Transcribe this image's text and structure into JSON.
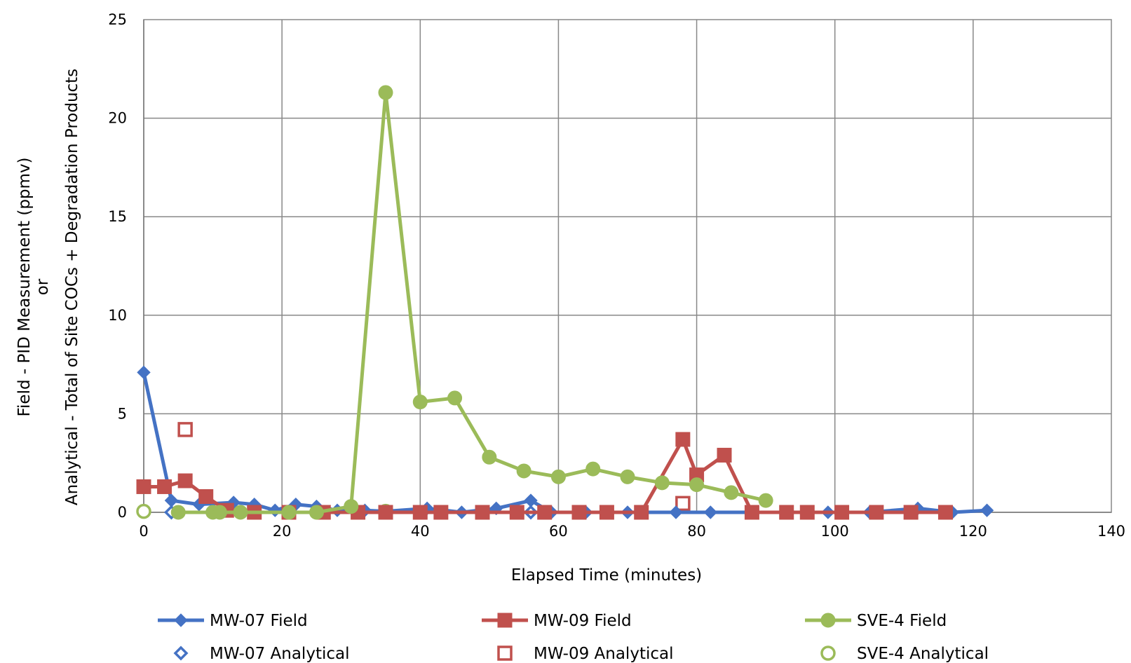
{
  "chart_data": {
    "type": "scatter",
    "xlabel": "Elapsed Time (minutes)",
    "ylabel_lines": [
      "Field - PID Measurement (ppmv)",
      "or",
      "Analytical - Total of Site COCs + Degradation Products"
    ],
    "xlim": [
      0,
      140
    ],
    "ylim": [
      0,
      25
    ],
    "x_ticks": [
      0,
      20,
      40,
      60,
      80,
      100,
      120,
      140
    ],
    "y_ticks": [
      0,
      5,
      10,
      15,
      20,
      25
    ],
    "grid": true,
    "legend_position": "bottom",
    "series": [
      {
        "name": "MW-07 Field",
        "color": "#4472C4",
        "marker": "diamond",
        "filled": true,
        "line": true,
        "points": [
          [
            0,
            7.1
          ],
          [
            4,
            0.6
          ],
          [
            8,
            0.4
          ],
          [
            13,
            0.5
          ],
          [
            16,
            0.4
          ],
          [
            19,
            0.1
          ],
          [
            22,
            0.4
          ],
          [
            25,
            0.3
          ],
          [
            28,
            0.1
          ],
          [
            32,
            0.1
          ],
          [
            35,
            0.05
          ],
          [
            41,
            0.2
          ],
          [
            46,
            0.0
          ],
          [
            51,
            0.2
          ],
          [
            56,
            0.6
          ],
          [
            59,
            0.0
          ],
          [
            64,
            0.0
          ],
          [
            70,
            0.0
          ],
          [
            77,
            0.0
          ],
          [
            82,
            0.0
          ],
          [
            88,
            0.0
          ],
          [
            93,
            0.0
          ],
          [
            99,
            0.0
          ],
          [
            105,
            0.0
          ],
          [
            112,
            0.2
          ],
          [
            117,
            0.0
          ],
          [
            122,
            0.1
          ]
        ]
      },
      {
        "name": "MW-09 Field",
        "color": "#C0504D",
        "marker": "square",
        "filled": true,
        "line": true,
        "points": [
          [
            0,
            1.3
          ],
          [
            3,
            1.3
          ],
          [
            6,
            1.6
          ],
          [
            9,
            0.8
          ],
          [
            12,
            0.1
          ],
          [
            16,
            0.0
          ],
          [
            21,
            0.0
          ],
          [
            26,
            0.0
          ],
          [
            31,
            0.0
          ],
          [
            35,
            0.0
          ],
          [
            40,
            0.0
          ],
          [
            43,
            0.0
          ],
          [
            49,
            0.0
          ],
          [
            54,
            0.0
          ],
          [
            58,
            0.0
          ],
          [
            63,
            0.0
          ],
          [
            67,
            0.0
          ],
          [
            72,
            0.0
          ],
          [
            78,
            3.7
          ],
          [
            80,
            1.9
          ],
          [
            84,
            2.9
          ],
          [
            88,
            0.0
          ],
          [
            93,
            0.0
          ],
          [
            96,
            0.0
          ],
          [
            101,
            0.0
          ],
          [
            106,
            0.0
          ],
          [
            111,
            0.0
          ],
          [
            116,
            0.0
          ]
        ]
      },
      {
        "name": "SVE-4 Field",
        "color": "#9BBB59",
        "marker": "circle",
        "filled": true,
        "line": true,
        "points": [
          [
            5,
            0.0
          ],
          [
            10,
            0.0
          ],
          [
            11,
            0.0
          ],
          [
            14,
            0.0
          ],
          [
            21,
            0.0
          ],
          [
            25,
            0.0
          ],
          [
            30,
            0.3
          ],
          [
            35,
            21.3
          ],
          [
            40,
            5.6
          ],
          [
            45,
            5.8
          ],
          [
            50,
            2.8
          ],
          [
            55,
            2.1
          ],
          [
            60,
            1.8
          ],
          [
            65,
            2.2
          ],
          [
            70,
            1.8
          ],
          [
            75,
            1.5
          ],
          [
            80,
            1.4
          ],
          [
            85,
            1.0
          ],
          [
            90,
            0.6
          ]
        ]
      },
      {
        "name": "MW-07 Analytical",
        "color": "#4472C4",
        "marker": "diamond",
        "filled": false,
        "line": false,
        "points": [
          [
            4,
            0.0
          ],
          [
            56,
            0.0
          ]
        ]
      },
      {
        "name": "MW-09 Analytical",
        "color": "#C0504D",
        "marker": "square",
        "filled": false,
        "line": false,
        "points": [
          [
            6,
            4.2
          ],
          [
            78,
            0.45
          ]
        ]
      },
      {
        "name": "SVE-4 Analytical",
        "color": "#9BBB59",
        "marker": "circle",
        "filled": false,
        "line": false,
        "points": [
          [
            0,
            0.05
          ],
          [
            35,
            0.05
          ]
        ]
      }
    ]
  }
}
